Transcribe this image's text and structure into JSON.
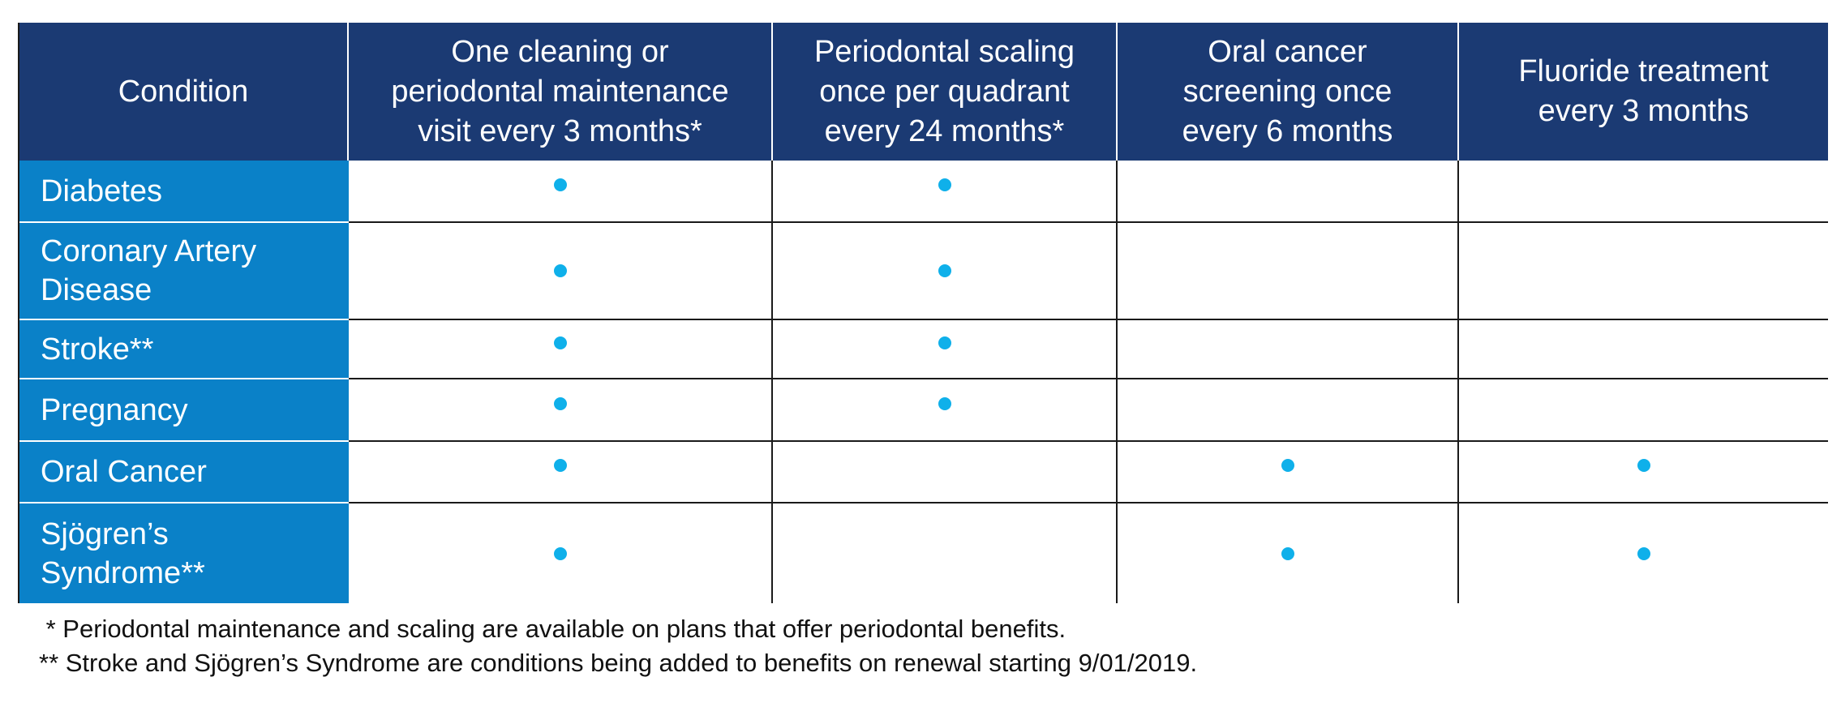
{
  "headers": [
    "Condition",
    "One cleaning or\nperiodontal maintenance\nvisit every 3 months*",
    "Periodontal scaling\nonce per quadrant\nevery 24 months*",
    "Oral cancer\nscreening once\nevery 6 months",
    "Fluoride treatment\nevery 3 months"
  ],
  "rows": [
    {
      "condition": "Diabetes",
      "marks": [
        true,
        true,
        false,
        false
      ]
    },
    {
      "condition": "Coronary Artery\nDisease",
      "marks": [
        true,
        true,
        false,
        false
      ]
    },
    {
      "condition": "Stroke**",
      "marks": [
        true,
        true,
        false,
        false
      ]
    },
    {
      "condition": "Pregnancy",
      "marks": [
        true,
        true,
        false,
        false
      ]
    },
    {
      "condition": "Oral Cancer",
      "marks": [
        true,
        false,
        true,
        true
      ]
    },
    {
      "condition": "Sjögren’s\nSyndrome**",
      "marks": [
        true,
        false,
        true,
        true
      ]
    }
  ],
  "footnotes": [
    " * Periodontal maintenance and scaling are available on plans that offer periodontal benefits.",
    "** Stroke and Sjögren’s Syndrome are conditions being added to benefits on renewal starting 9/01/2019."
  ],
  "colors": {
    "header_bg": "#1b3a73",
    "condition_bg": "#0a81c8",
    "dot": "#0fb0ea",
    "grid_line": "#1a1a1a"
  },
  "mark_icon": "bullet-dot"
}
